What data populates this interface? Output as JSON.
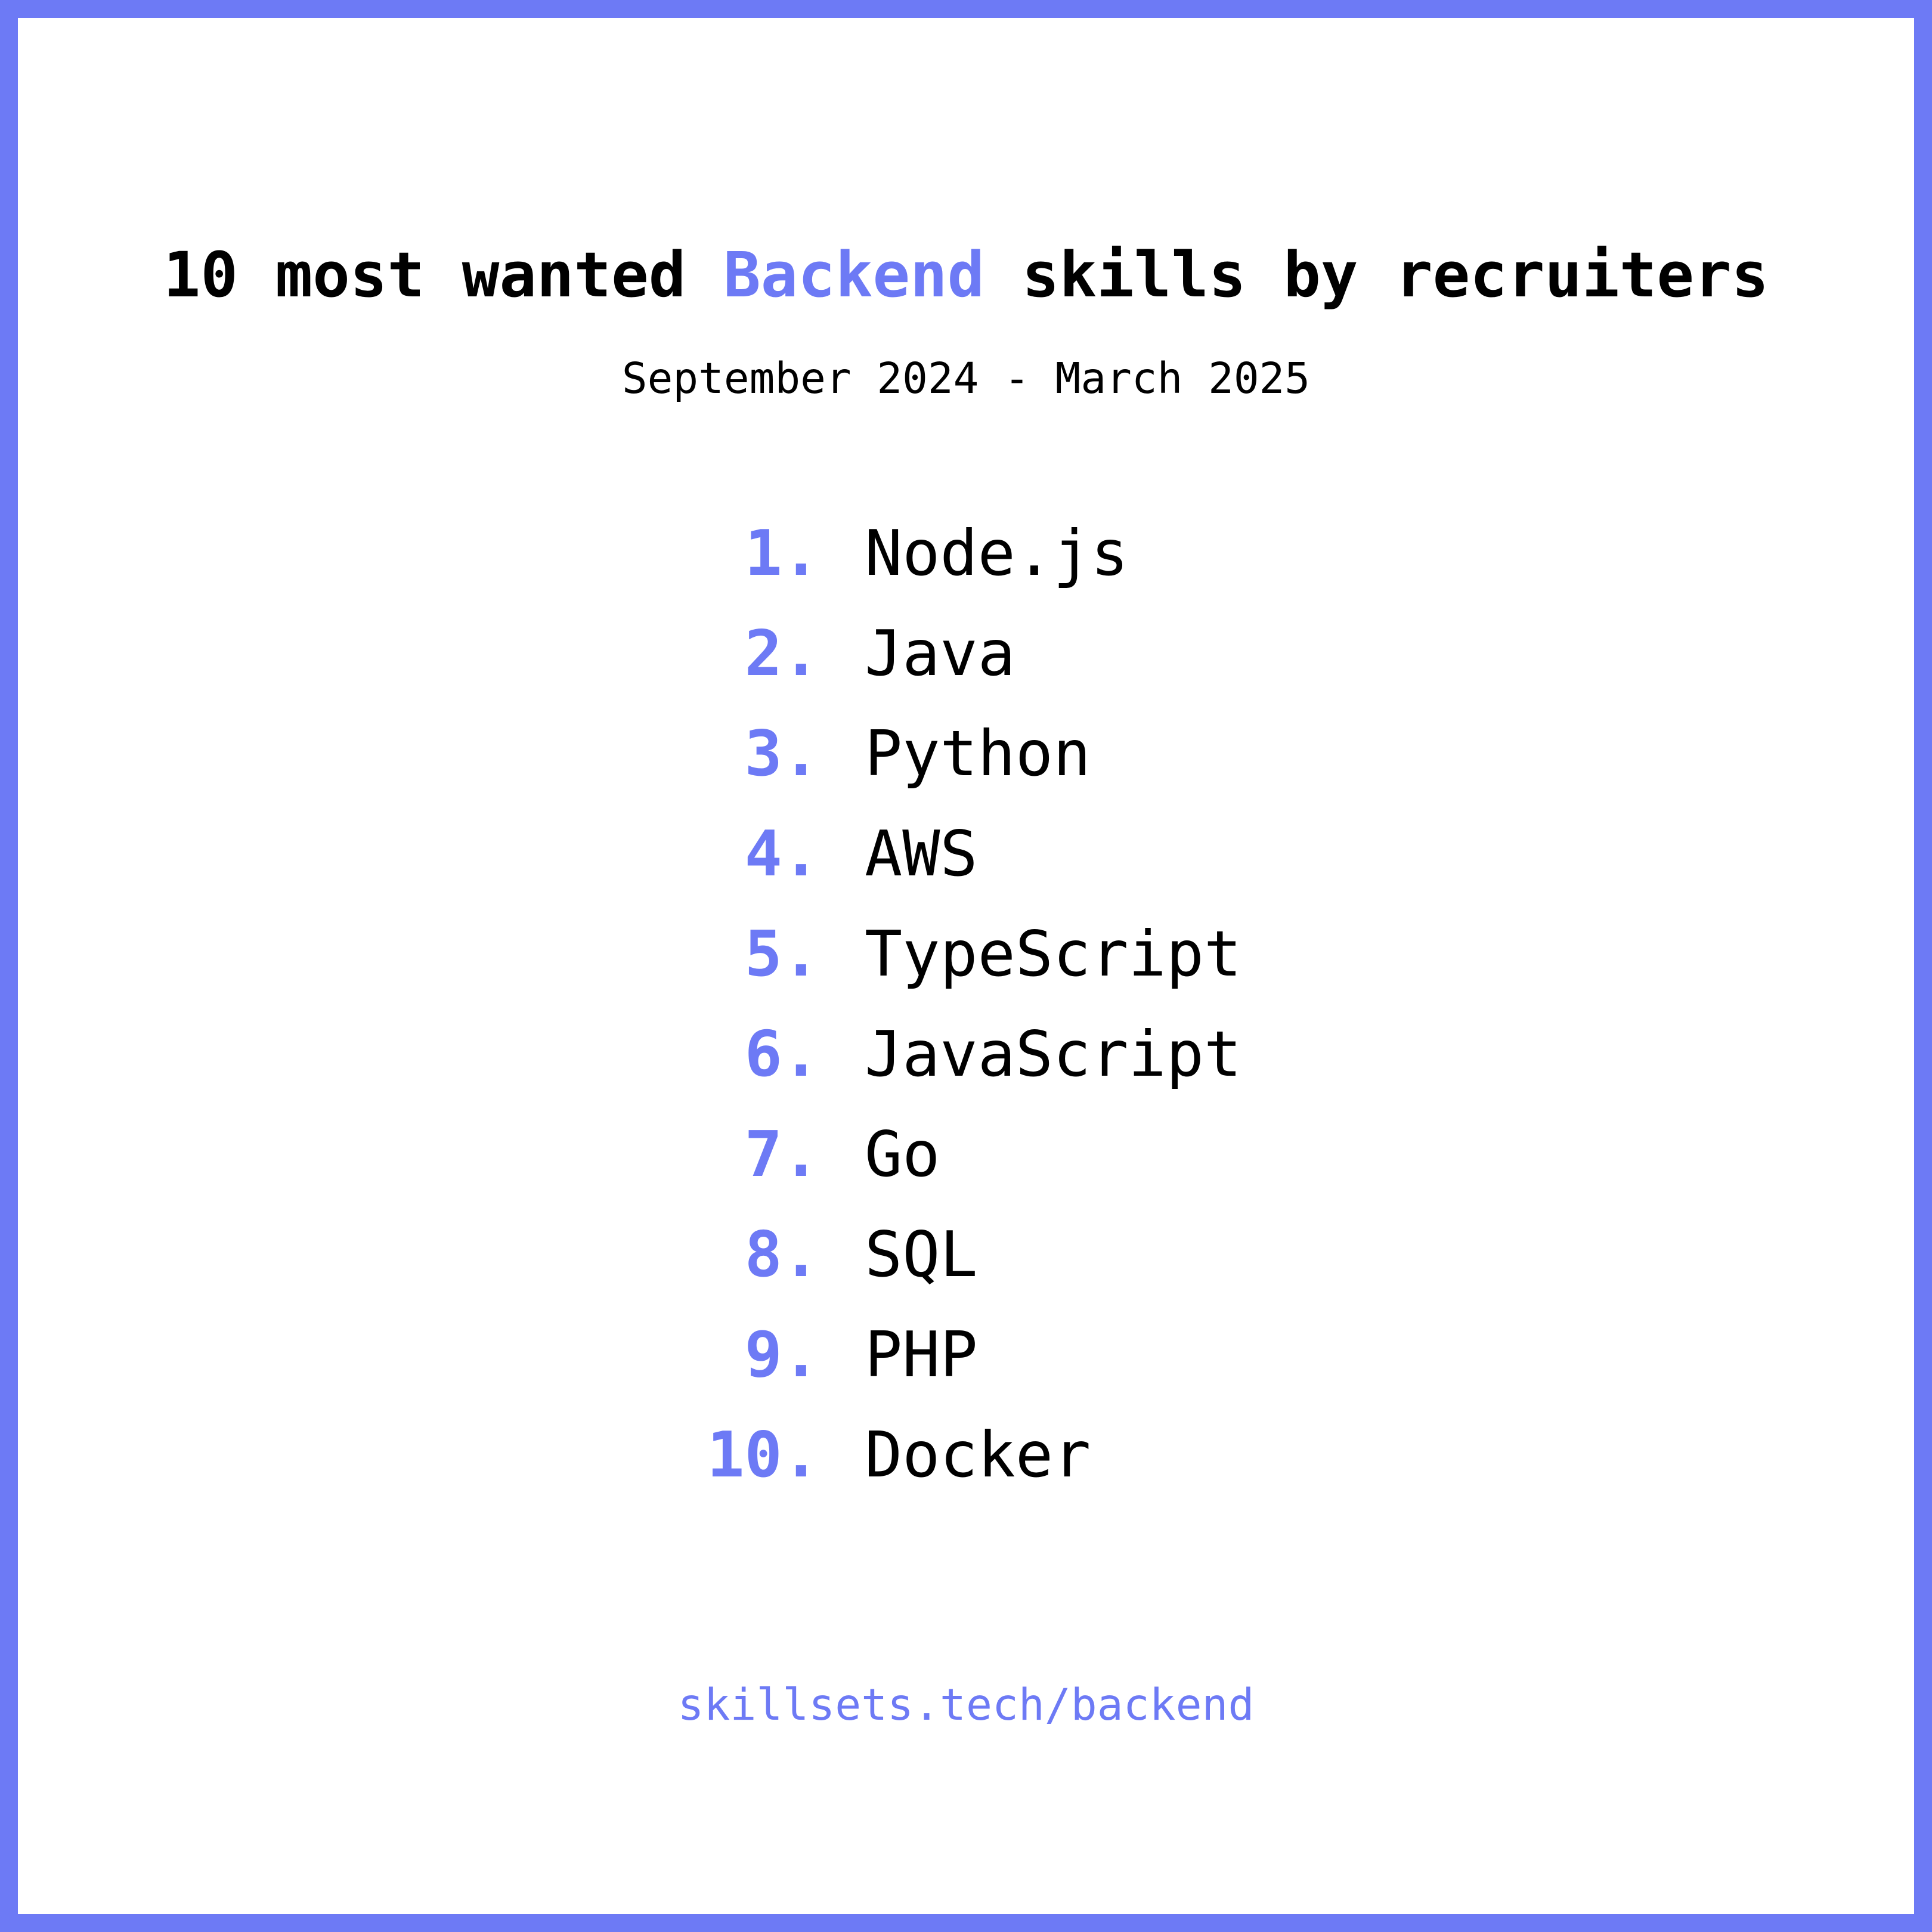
{
  "header": {
    "title_before": "10 most wanted ",
    "title_highlight": "Backend",
    "title_after": " skills by recruiters",
    "subtitle": "September 2024 - March 2025"
  },
  "skills": [
    {
      "rank": "1.",
      "name": "Node.js"
    },
    {
      "rank": "2.",
      "name": "Java"
    },
    {
      "rank": "3.",
      "name": "Python"
    },
    {
      "rank": "4.",
      "name": "AWS"
    },
    {
      "rank": "5.",
      "name": "TypeScript"
    },
    {
      "rank": "6.",
      "name": "JavaScript"
    },
    {
      "rank": "7.",
      "name": "Go"
    },
    {
      "rank": "8.",
      "name": "SQL"
    },
    {
      "rank": "9.",
      "name": "PHP"
    },
    {
      "rank": "10.",
      "name": "Docker"
    }
  ],
  "footer": {
    "link_text": "skillsets.tech/backend"
  },
  "colors": {
    "accent": "#6d7af5",
    "text": "#000000",
    "background": "#ffffff"
  }
}
